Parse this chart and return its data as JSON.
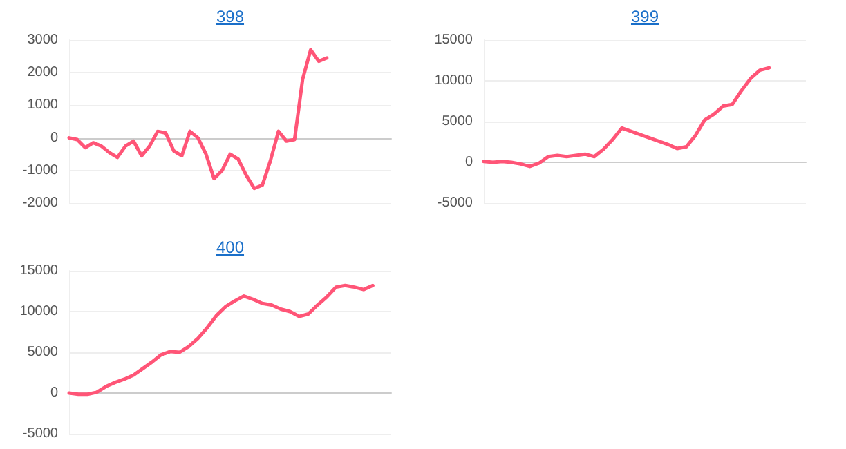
{
  "chart_data": [
    {
      "type": "line",
      "title": "398",
      "categories": [
        null,
        null,
        null,
        null,
        null,
        null,
        null,
        null,
        null,
        null,
        null,
        null,
        null,
        null,
        null,
        null,
        null,
        null,
        null,
        null,
        null,
        null,
        null,
        null,
        null,
        null,
        null,
        null,
        null,
        null,
        null,
        null,
        null,
        null,
        null,
        null,
        null,
        null,
        null,
        null,
        null
      ],
      "series": [
        {
          "color": "#ff5577",
          "values": [
            0,
            -50,
            -300,
            -150,
            -250,
            -450,
            -600,
            -250,
            -100,
            -550,
            -250,
            200,
            150,
            -400,
            -550,
            200,
            0,
            -500,
            -1250,
            -1000,
            -500,
            -650,
            -1150,
            -1550,
            -1450,
            -700,
            200,
            -100,
            -50,
            1800,
            2700,
            2350,
            2450,
            null,
            null,
            null,
            null,
            null,
            null,
            null,
            null
          ]
        }
      ],
      "ylim": [
        -2000,
        3000
      ],
      "yticks": [
        -2000,
        -1000,
        0,
        1000,
        2000,
        3000
      ],
      "grid": "y",
      "tick_labels": "y",
      "line_style": "solid"
    },
    {
      "type": "line",
      "title": "399",
      "categories": [
        null,
        null,
        null,
        null,
        null,
        null,
        null,
        null,
        null,
        null,
        null,
        null,
        null,
        null,
        null,
        null,
        null,
        null,
        null,
        null,
        null,
        null,
        null,
        null,
        null,
        null,
        null,
        null,
        null,
        null,
        null,
        null,
        null,
        null,
        null,
        null
      ],
      "series": [
        {
          "color": "#ff5577",
          "values": [
            100,
            0,
            100,
            0,
            -200,
            -500,
            -100,
            700,
            850,
            700,
            850,
            1000,
            700,
            1600,
            2800,
            4200,
            3800,
            3400,
            3000,
            2600,
            2200,
            1700,
            1900,
            3300,
            5200,
            5900,
            6900,
            7100,
            8800,
            10300,
            11300,
            11600,
            null,
            null,
            null,
            null
          ]
        }
      ],
      "ylim": [
        -5000,
        15000
      ],
      "yticks": [
        -5000,
        0,
        5000,
        10000,
        15000
      ],
      "grid": "y",
      "tick_labels": "y",
      "line_style": "solid"
    },
    {
      "type": "line",
      "title": "400",
      "categories": [
        null,
        null,
        null,
        null,
        null,
        null,
        null,
        null,
        null,
        null,
        null,
        null,
        null,
        null,
        null,
        null,
        null,
        null,
        null,
        null,
        null,
        null,
        null,
        null,
        null,
        null,
        null,
        null,
        null,
        null,
        null,
        null,
        null,
        null,
        null,
        null
      ],
      "series": [
        {
          "color": "#ff5577",
          "values": [
            0,
            -150,
            -150,
            100,
            800,
            1300,
            1700,
            2200,
            3000,
            3800,
            4700,
            5100,
            5000,
            5700,
            6700,
            8000,
            9500,
            10600,
            11300,
            11900,
            11500,
            11000,
            10800,
            10300,
            10000,
            9400,
            9700,
            10800,
            11800,
            13000,
            13200,
            13000,
            12700,
            13200,
            null,
            null
          ]
        }
      ],
      "ylim": [
        -5000,
        15000
      ],
      "yticks": [
        -5000,
        0,
        5000,
        10000,
        15000
      ],
      "grid": "y",
      "tick_labels": "y",
      "line_style": "solid"
    }
  ]
}
